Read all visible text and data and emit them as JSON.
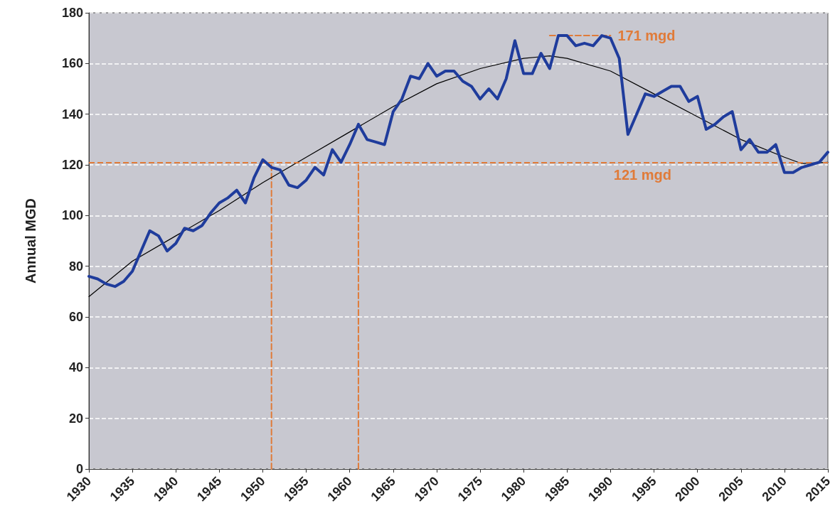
{
  "chart_data": {
    "type": "line",
    "ylabel": "Annual MGD",
    "xlim": [
      1930,
      2015
    ],
    "xticks": [
      1930,
      1935,
      1940,
      1945,
      1950,
      1955,
      1960,
      1965,
      1970,
      1975,
      1980,
      1985,
      1990,
      1995,
      2000,
      2005,
      2010,
      2015
    ],
    "ylim": [
      0,
      180
    ],
    "yticks": [
      0,
      20,
      40,
      60,
      80,
      100,
      120,
      140,
      160,
      180
    ],
    "grid": "y",
    "marker": "none",
    "x": [
      1930,
      1931,
      1932,
      1933,
      1934,
      1935,
      1936,
      1937,
      1938,
      1939,
      1940,
      1941,
      1942,
      1943,
      1944,
      1945,
      1946,
      1947,
      1948,
      1949,
      1950,
      1951,
      1952,
      1953,
      1954,
      1955,
      1956,
      1957,
      1958,
      1959,
      1960,
      1961,
      1962,
      1963,
      1964,
      1965,
      1966,
      1967,
      1968,
      1969,
      1970,
      1971,
      1972,
      1973,
      1974,
      1975,
      1976,
      1977,
      1978,
      1979,
      1980,
      1981,
      1982,
      1983,
      1984,
      1985,
      1986,
      1987,
      1988,
      1989,
      1990,
      1991,
      1992,
      1993,
      1994,
      1995,
      1996,
      1997,
      1998,
      1999,
      2000,
      2001,
      2002,
      2003,
      2004,
      2005,
      2006,
      2007,
      2008,
      2009,
      2010,
      2011,
      2012,
      2013,
      2014,
      2015
    ],
    "series": [
      {
        "color": "#1f3c9c",
        "values": [
          76,
          75,
          73,
          72,
          74,
          78,
          86,
          94,
          92,
          86,
          89,
          95,
          94,
          96,
          101,
          105,
          107,
          110,
          105,
          115,
          122,
          119,
          118,
          112,
          111,
          114,
          119,
          116,
          126,
          121,
          128,
          136,
          130,
          129,
          128,
          141,
          146,
          155,
          154,
          160,
          155,
          157,
          157,
          153,
          151,
          146,
          150,
          146,
          154,
          169,
          156,
          156,
          164,
          158,
          171,
          171,
          167,
          168,
          167,
          171,
          170,
          162,
          132,
          140,
          148,
          147,
          149,
          151,
          151,
          145,
          147,
          134,
          136,
          139,
          141,
          126,
          130,
          125,
          125,
          128,
          117,
          117,
          119,
          120,
          121,
          125
        ]
      },
      {
        "color": "#000000",
        "x": [
          1930,
          1935,
          1940,
          1945,
          1950,
          1955,
          1960,
          1965,
          1970,
          1975,
          1980,
          1983,
          1985,
          1990,
          1995,
          2000,
          2005,
          2010,
          2012,
          2015
        ],
        "values": [
          68,
          82,
          92,
          102,
          113,
          123,
          133,
          143,
          152,
          158,
          162,
          163,
          162,
          157,
          148,
          139,
          130,
          123,
          120.5,
          121
        ]
      },
      {
        "color": "#e07b39",
        "line_style": "dashed",
        "x": [
          1951,
          1951
        ],
        "values": [
          0,
          121
        ]
      },
      {
        "color": "#e07b39",
        "line_style": "dashed",
        "x": [
          1961,
          1961
        ],
        "values": [
          0,
          121
        ]
      },
      {
        "color": "#e07b39",
        "line_style": "dashed",
        "x": [
          1983,
          1990
        ],
        "values": [
          171,
          171
        ]
      }
    ],
    "ref_lines": [
      {
        "axis": "y",
        "value": 121,
        "label": "121 mgd",
        "color": "#e07b39",
        "line_style": "dashed"
      }
    ],
    "annotations": [
      {
        "text": "171 mgd",
        "x": 1990,
        "y": 171
      }
    ]
  }
}
